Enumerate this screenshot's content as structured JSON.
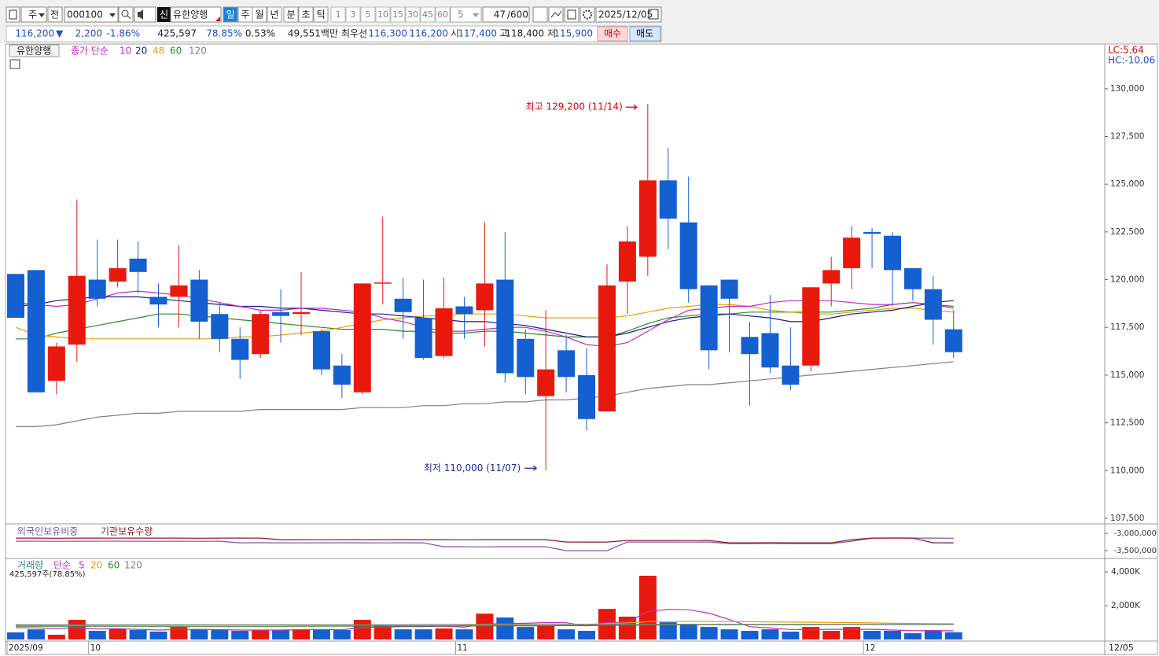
{
  "toolbar": {
    "period_type": "주",
    "view": "전",
    "code": "000100",
    "credit": "신",
    "name": "유한양행",
    "intervals": [
      "일",
      "주",
      "월",
      "년",
      "분",
      "초",
      "틱"
    ],
    "minutes": [
      "1",
      "3",
      "5",
      "10",
      "15",
      "30",
      "45",
      "60"
    ],
    "count_select": "5",
    "count": "47",
    "count_max": "/600",
    "date": "2025/12/05"
  },
  "info_bar": {
    "price": "116,200",
    "change_mark": "▼",
    "change": "2,200",
    "change_pct": "-1.86%",
    "volume": "425,597",
    "volume_ratio": "78.85%",
    "turnover": "0.53%",
    "amount": "49,551백만",
    "best_quote_label": "최우선",
    "ask": "116,300",
    "bid": "116,200",
    "open_label": "시",
    "open": "117,400",
    "high_label": "고",
    "high": "118,400",
    "low_label": "저",
    "low": "115,900",
    "buy": "매수",
    "sell": "매도"
  },
  "chart_data": [
    {
      "type": "candlestick",
      "title": "유한양행",
      "legend_label": "종가 단순",
      "lc": "LC:5.64",
      "hc": "HC:-10.06",
      "x_end_label": "12/05",
      "categories": [
        "2025/09",
        null,
        null,
        null,
        "10",
        null,
        null,
        null,
        null,
        null,
        null,
        null,
        null,
        null,
        null,
        null,
        null,
        null,
        null,
        null,
        null,
        null,
        "11",
        null,
        null,
        null,
        null,
        null,
        null,
        null,
        null,
        null,
        null,
        null,
        null,
        null,
        null,
        null,
        null,
        null,
        null,
        null,
        "12",
        null,
        null,
        null,
        null
      ],
      "open": [
        120300,
        120500,
        114700,
        116600,
        120000,
        119900,
        121100,
        119100,
        119100,
        120000,
        118200,
        116900,
        116100,
        118300,
        118200,
        117300,
        115500,
        114100,
        119800,
        119000,
        118000,
        116000,
        118600,
        118400,
        120000,
        116900,
        113900,
        116300,
        115000,
        113100,
        119900,
        121200,
        125200,
        123000,
        119700,
        120000,
        117000,
        117200,
        115500,
        115500,
        119800,
        120600,
        122500,
        122300,
        120600,
        119500,
        117400
      ],
      "high": [
        120300,
        120500,
        116700,
        124200,
        122100,
        122100,
        122000,
        119800,
        121800,
        120500,
        118800,
        117500,
        118400,
        119500,
        120400,
        117400,
        116100,
        119800,
        123300,
        120100,
        120000,
        120100,
        119100,
        123000,
        122500,
        117400,
        118400,
        117100,
        116400,
        120800,
        122800,
        129200,
        126900,
        125400,
        119700,
        120000,
        117800,
        119200,
        117500,
        119600,
        121200,
        122800,
        122700,
        122500,
        120600,
        120200,
        118400
      ],
      "low": [
        118000,
        114100,
        114000,
        115700,
        118600,
        119600,
        119300,
        117500,
        117500,
        116900,
        116200,
        114800,
        115900,
        116700,
        117100,
        115000,
        113800,
        114000,
        118700,
        116900,
        115800,
        115900,
        116900,
        116500,
        114600,
        114000,
        110000,
        114100,
        112100,
        113100,
        118200,
        120200,
        121600,
        118800,
        115300,
        116200,
        113400,
        115100,
        114200,
        115200,
        118600,
        119500,
        120600,
        118600,
        118900,
        116600,
        115900
      ],
      "close": [
        118000,
        114100,
        116500,
        120200,
        119000,
        120600,
        120400,
        118700,
        119700,
        117800,
        116900,
        115800,
        118200,
        118100,
        118300,
        115300,
        114500,
        119800,
        119850,
        118300,
        115900,
        118500,
        118200,
        119800,
        115100,
        114900,
        115300,
        114900,
        112700,
        119700,
        122000,
        125200,
        123200,
        119500,
        116300,
        119000,
        116100,
        115400,
        114500,
        119600,
        120500,
        122200,
        122400,
        120500,
        119500,
        117900,
        116200
      ],
      "up_color": "#e8190c",
      "down_color": "#1560d0",
      "series": [
        {
          "name": "10",
          "color": "#c42ac4",
          "values": [
            118800,
            118700,
            118600,
            118700,
            119000,
            119300,
            119400,
            119300,
            119200,
            119000,
            118800,
            118600,
            118400,
            118400,
            118500,
            118500,
            118400,
            118300,
            118000,
            117800,
            117500,
            117300,
            117300,
            117400,
            117500,
            117500,
            117300,
            117000,
            116600,
            116500,
            116700,
            117300,
            117900,
            118400,
            118500,
            118600,
            118600,
            118800,
            118900,
            118900,
            118900,
            118800,
            118700,
            118700,
            118800,
            118700,
            118500
          ]
        },
        {
          "name": "20",
          "color": "#1a1a8c",
          "values": [
            118600,
            118700,
            118900,
            119000,
            119100,
            119100,
            119100,
            119000,
            118900,
            118800,
            118700,
            118600,
            118600,
            118500,
            118500,
            118400,
            118300,
            118200,
            118200,
            118100,
            118000,
            117900,
            117800,
            117800,
            117700,
            117600,
            117400,
            117200,
            117000,
            117000,
            117200,
            117500,
            117800,
            118000,
            118100,
            118200,
            118100,
            118000,
            117800,
            117800,
            118000,
            118200,
            118300,
            118400,
            118600,
            118800,
            118900
          ]
        },
        {
          "name": "48",
          "color": "#e8a000",
          "values": [
            117500,
            117100,
            117000,
            116900,
            116900,
            116900,
            116900,
            116900,
            116900,
            116900,
            116900,
            117000,
            117000,
            117100,
            117200,
            117300,
            117500,
            117700,
            117900,
            118000,
            118100,
            118100,
            118200,
            118200,
            118200,
            118100,
            118000,
            118000,
            118000,
            118000,
            118100,
            118300,
            118500,
            118600,
            118700,
            118700,
            118600,
            118400,
            118300,
            118200,
            118200,
            118300,
            118400,
            118500,
            118500,
            118400,
            118300
          ]
        },
        {
          "name": "60",
          "color": "#2a8a2a",
          "values": [
            116900,
            116900,
            117200,
            117400,
            117600,
            117800,
            118000,
            118200,
            118200,
            118100,
            118000,
            117900,
            117800,
            117700,
            117600,
            117500,
            117400,
            117400,
            117400,
            117300,
            117300,
            117200,
            117200,
            117300,
            117300,
            117200,
            117100,
            117000,
            117000,
            117000,
            117300,
            117700,
            118000,
            118100,
            118200,
            118200,
            118300,
            118300,
            118300,
            118300,
            118300,
            118400,
            118500,
            118700,
            118800,
            118700,
            118600
          ]
        },
        {
          "name": "120",
          "color": "#808080",
          "values": [
            112300,
            112300,
            112400,
            112600,
            112800,
            112900,
            113000,
            113000,
            113100,
            113100,
            113100,
            113100,
            113200,
            113200,
            113200,
            113200,
            113200,
            113300,
            113300,
            113300,
            113400,
            113400,
            113500,
            113500,
            113600,
            113600,
            113700,
            113700,
            113800,
            113900,
            114100,
            114300,
            114400,
            114500,
            114500,
            114600,
            114700,
            114800,
            114900,
            115000,
            115100,
            115200,
            115300,
            115400,
            115500,
            115600,
            115700
          ]
        }
      ],
      "ylim": [
        107250,
        132300
      ],
      "yticks": [
        {
          "value": 130000,
          "label": "130,000"
        },
        {
          "value": 127500,
          "label": "127,500"
        },
        {
          "value": 125000,
          "label": "125,000"
        },
        {
          "value": 122500,
          "label": "122,500"
        },
        {
          "value": 120000,
          "label": "120,000"
        },
        {
          "value": 117500,
          "label": "117,500"
        },
        {
          "value": 115000,
          "label": "115,000"
        },
        {
          "value": 112500,
          "label": "112,500"
        },
        {
          "value": 110000,
          "label": "110,000"
        },
        {
          "value": 107500,
          "label": "107,500"
        }
      ],
      "annotations": {
        "high": "최고 129,200 (11/14)",
        "low": "최저 110,000 (11/07)"
      }
    },
    {
      "type": "line",
      "series": [
        {
          "name": "외국인보유비중",
          "color": "#7a55b0",
          "values": [
            -3227000,
            -3225000,
            -3230000,
            -3227000,
            -3228000,
            -3225000,
            -3227000,
            -3230000,
            -3227000,
            -3229000,
            -3227000,
            -3273000,
            -3270000,
            -3273000,
            -3275000,
            -3273000,
            -3270000,
            -3273000,
            -3276000,
            -3273000,
            -3273000,
            -3386000,
            -3386000,
            -3390000,
            -3386000,
            -3386000,
            -3386000,
            -3500000,
            -3500000,
            -3500000,
            -3250000,
            -3250000,
            -3250000,
            -3252000,
            -3250000,
            -3295000,
            -3295000,
            -3292000,
            -3295000,
            -3295000,
            -3295000,
            -3227000,
            -3136000,
            -3130000,
            -3136000,
            -3136000,
            -3140000
          ]
        },
        {
          "name": "기관보유수량",
          "color": "#8b1a2a",
          "values": [
            -3136000,
            -3136000,
            -3140000,
            -3136000,
            -3136000,
            -3138000,
            -3136000,
            -3136000,
            -3136000,
            -3140000,
            -3136000,
            -3136000,
            -3136000,
            -3182000,
            -3182000,
            -3185000,
            -3182000,
            -3182000,
            -3182000,
            -3180000,
            -3182000,
            -3182000,
            -3185000,
            -3182000,
            -3182000,
            -3182000,
            -3182000,
            -3250000,
            -3250000,
            -3250000,
            -3205000,
            -3205000,
            -3205000,
            -3208000,
            -3205000,
            -3273000,
            -3273000,
            -3270000,
            -3273000,
            -3273000,
            -3273000,
            -3182000,
            -3136000,
            -3136000,
            -3136000,
            -3273000,
            -3273000
          ]
        }
      ],
      "ylim": [
        -3680000,
        -2770000
      ],
      "yticks": [
        {
          "value": -3000000,
          "label": "-3,000,000"
        },
        {
          "value": -3500000,
          "label": "-3,500,000"
        }
      ]
    },
    {
      "type": "bar",
      "legend_label": "거래량",
      "ma_label": "단순",
      "volume_label": "425,597주(78.85%)",
      "values": [
        420,
        600,
        280,
        1160,
        510,
        650,
        560,
        465,
        740,
        600,
        560,
        510,
        560,
        560,
        600,
        600,
        560,
        1160,
        840,
        600,
        600,
        650,
        600,
        1530,
        1300,
        740,
        840,
        600,
        510,
        1810,
        1350,
        3770,
        1020,
        930,
        740,
        600,
        510,
        600,
        465,
        740,
        510,
        740,
        510,
        510,
        370,
        510,
        425.597
      ],
      "series": [
        {
          "name": "5",
          "color": "#c42ac4",
          "values": [
            700,
            690,
            650,
            700,
            620,
            640,
            600,
            560,
            590,
            600,
            580,
            560,
            560,
            560,
            580,
            590,
            580,
            700,
            740,
            760,
            760,
            780,
            730,
            910,
            940,
            960,
            1000,
            990,
            800,
            1000,
            1020,
            1650,
            1780,
            1760,
            1560,
            1180,
            760,
            680,
            590,
            580,
            600,
            600,
            600,
            560,
            520,
            530,
            510
          ]
        },
        {
          "name": "20",
          "color": "#e8a000",
          "values": [
            820,
            820,
            810,
            810,
            800,
            800,
            790,
            790,
            790,
            780,
            780,
            780,
            780,
            780,
            780,
            790,
            790,
            800,
            800,
            810,
            810,
            810,
            820,
            850,
            870,
            880,
            890,
            890,
            890,
            950,
            980,
            1050,
            1060,
            1070,
            1070,
            1060,
            1050,
            1040,
            1030,
            1020,
            1010,
            1000,
            980,
            960,
            950,
            940,
            930
          ]
        },
        {
          "name": "60",
          "color": "#2a8a2a",
          "values": [
            780,
            780,
            780,
            780,
            780,
            780,
            780,
            780,
            780,
            780,
            780,
            780,
            780,
            780,
            790,
            790,
            790,
            790,
            790,
            790,
            790,
            800,
            800,
            800,
            810,
            810,
            810,
            820,
            820,
            830,
            840,
            850,
            860,
            870,
            870,
            880,
            880,
            880,
            880,
            880,
            890,
            890,
            890,
            890,
            890,
            890,
            890
          ]
        },
        {
          "name": "120",
          "color": "#808080",
          "values": [
            880,
            880,
            880,
            880,
            880,
            880,
            880,
            880,
            880,
            880,
            880,
            880,
            880,
            880,
            880,
            880,
            880,
            880,
            880,
            880,
            890,
            890,
            890,
            890,
            890,
            890,
            890,
            890,
            890,
            890,
            890,
            890,
            890,
            890,
            890,
            900,
            900,
            900,
            900,
            900,
            900,
            900,
            900,
            900,
            900,
            900,
            900
          ]
        }
      ],
      "ylim": [
        0,
        4700
      ],
      "yticks": [
        {
          "value": 2000,
          "label": "2,000K"
        },
        {
          "value": 4000,
          "label": "4,000K"
        }
      ]
    }
  ]
}
